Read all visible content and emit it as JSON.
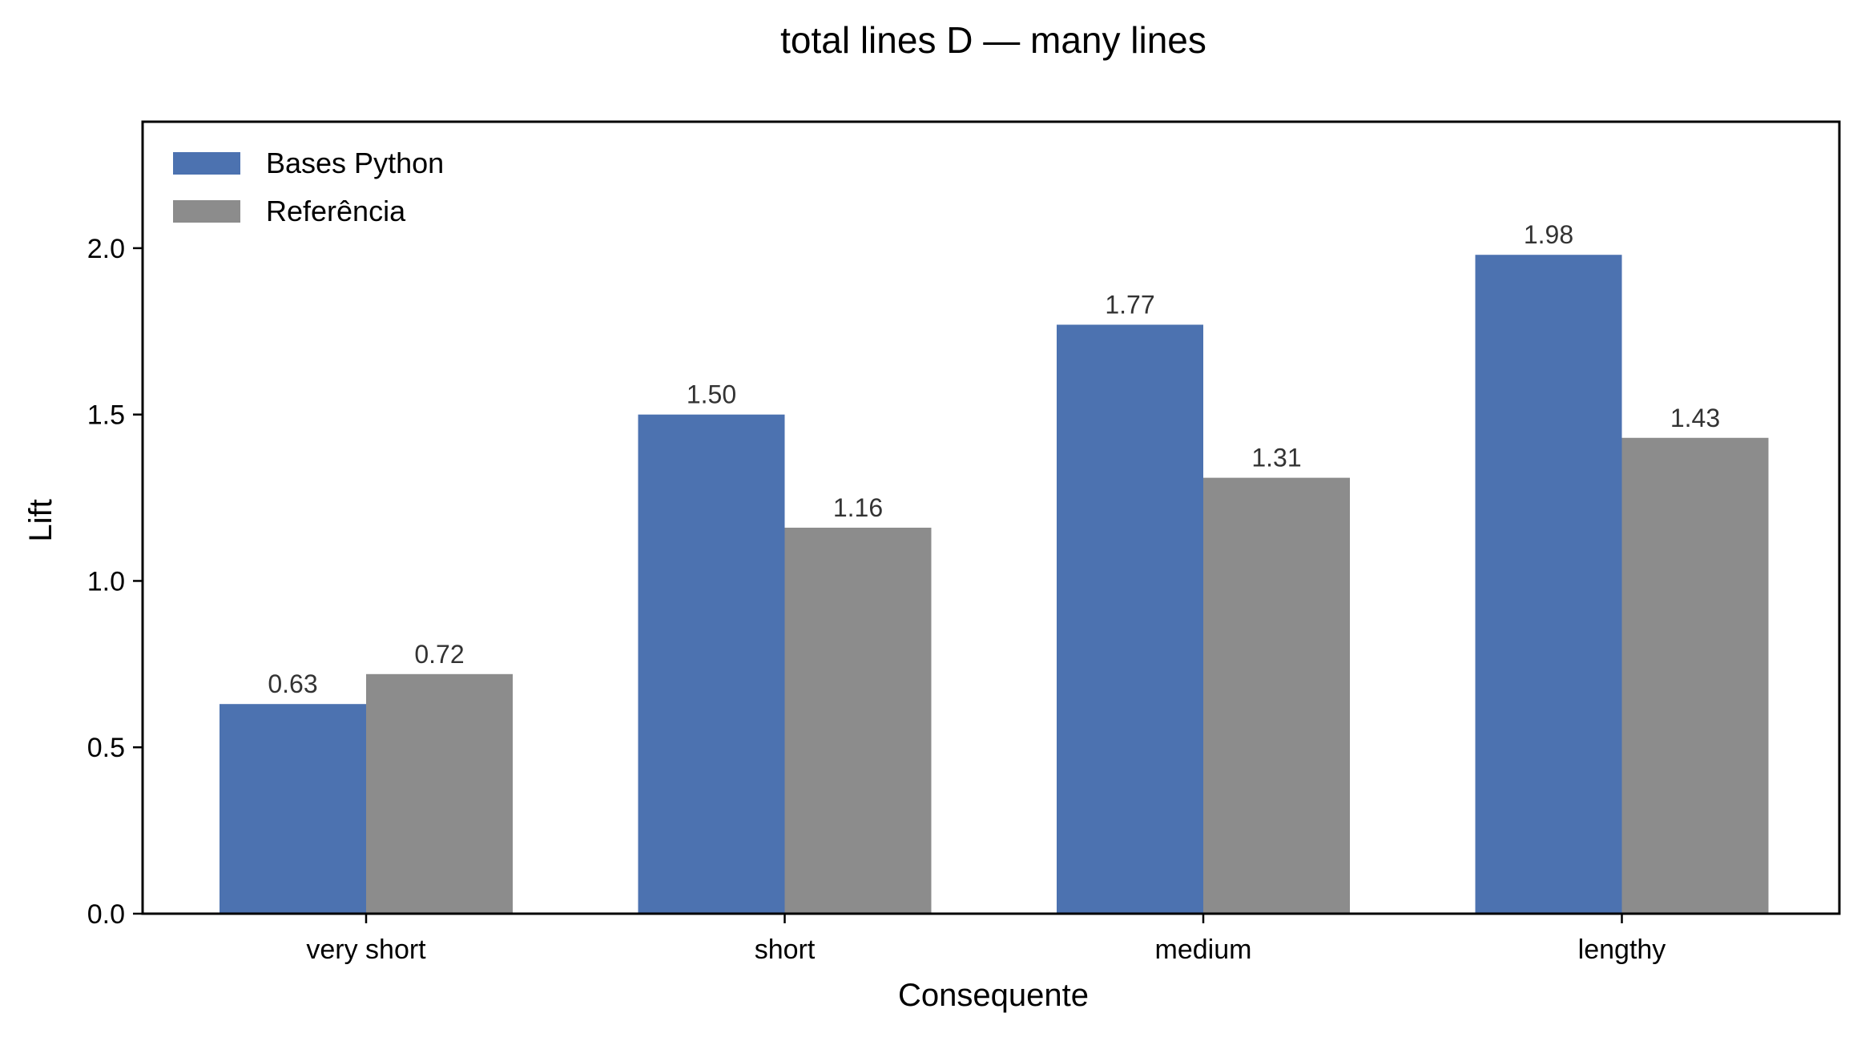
{
  "chart_data": {
    "type": "bar",
    "title": "total lines D — many lines",
    "xlabel": "Consequente",
    "ylabel": "Lift",
    "categories": [
      "very short",
      "short",
      "medium",
      "lengthy"
    ],
    "series": [
      {
        "name": "Bases Python",
        "values": [
          0.63,
          1.5,
          1.77,
          1.98
        ],
        "color": "#4c72b0",
        "labels": [
          "0.63",
          "1.50",
          "1.77",
          "1.98"
        ]
      },
      {
        "name": "Referência",
        "values": [
          0.72,
          1.16,
          1.31,
          1.43
        ],
        "color": "#8c8c8c",
        "labels": [
          "0.72",
          "1.16",
          "1.31",
          "1.43"
        ]
      }
    ],
    "ylim": [
      0,
      2.38
    ],
    "yticks": [
      0.0,
      0.5,
      1.0,
      1.5,
      2.0
    ],
    "ytick_labels": [
      "0.0",
      "0.5",
      "1.0",
      "1.5",
      "2.0"
    ],
    "grid": false,
    "legend_position": "top-left"
  }
}
